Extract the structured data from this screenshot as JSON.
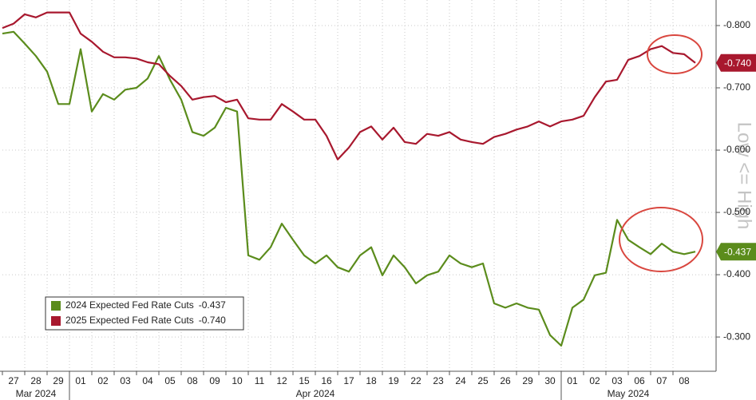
{
  "chart_data": {
    "type": "line",
    "annotation": "Low <= High",
    "xlim": [
      0,
      32
    ],
    "xticks": [
      {
        "value": 0,
        "label": "27"
      },
      {
        "value": 1,
        "label": "28"
      },
      {
        "value": 2,
        "label": "29"
      },
      {
        "value": 3,
        "label": "01"
      },
      {
        "value": 4,
        "label": "02"
      },
      {
        "value": 5,
        "label": "03"
      },
      {
        "value": 6,
        "label": "04"
      },
      {
        "value": 7,
        "label": "05"
      },
      {
        "value": 8,
        "label": "08"
      },
      {
        "value": 9,
        "label": "09"
      },
      {
        "value": 10,
        "label": "10"
      },
      {
        "value": 11,
        "label": "11"
      },
      {
        "value": 12,
        "label": "12"
      },
      {
        "value": 13,
        "label": "15"
      },
      {
        "value": 14,
        "label": "16"
      },
      {
        "value": 15,
        "label": "17"
      },
      {
        "value": 16,
        "label": "18"
      },
      {
        "value": 17,
        "label": "19"
      },
      {
        "value": 18,
        "label": "22"
      },
      {
        "value": 19,
        "label": "23"
      },
      {
        "value": 20,
        "label": "24"
      },
      {
        "value": 21,
        "label": "25"
      },
      {
        "value": 22,
        "label": "26"
      },
      {
        "value": 23,
        "label": "29"
      },
      {
        "value": 24,
        "label": "30"
      },
      {
        "value": 25,
        "label": "01"
      },
      {
        "value": 26,
        "label": "02"
      },
      {
        "value": 27,
        "label": "03"
      },
      {
        "value": 28,
        "label": "06"
      },
      {
        "value": 29,
        "label": "07"
      },
      {
        "value": 30,
        "label": "08"
      }
    ],
    "x_groups": [
      {
        "label": "Mar 2024",
        "start": 0,
        "end": 3
      },
      {
        "label": "Apr 2024",
        "start": 3,
        "end": 25
      },
      {
        "label": "May 2024",
        "start": 25,
        "end": 31
      }
    ],
    "ylim": [
      -0.841,
      -0.245
    ],
    "y_inverted": true,
    "yticks": [
      {
        "value": -0.8,
        "label": "-0.800"
      },
      {
        "value": -0.7,
        "label": "-0.700"
      },
      {
        "value": -0.6,
        "label": "-0.600"
      },
      {
        "value": -0.5,
        "label": "-0.500"
      },
      {
        "value": -0.4,
        "label": "-0.400"
      },
      {
        "value": -0.3,
        "label": "-0.300"
      }
    ],
    "grid": true,
    "legend": "bottom-left",
    "x": [
      0,
      0.5,
      1,
      1.5,
      2,
      2.5,
      3,
      3.5,
      4,
      4.5,
      5,
      5.5,
      6,
      6.5,
      7,
      7.5,
      8,
      8.5,
      9,
      9.5,
      10,
      10.5,
      11,
      11.5,
      12,
      12.5,
      13,
      13.5,
      14,
      14.5,
      15,
      15.5,
      16,
      16.5,
      17,
      17.5,
      18,
      18.5,
      19,
      19.5,
      20,
      20.5,
      21,
      21.5,
      22,
      22.5,
      23,
      23.5,
      24,
      24.5,
      25,
      25.5,
      26,
      26.5,
      27,
      27.5,
      28,
      28.5,
      29,
      29.5,
      30,
      30.5,
      31
    ],
    "series": [
      {
        "name": "2024 Expected Fed Rate Cuts",
        "color": "#5b8c1c",
        "last_value": {
          "value": -0.437,
          "label": "-0.437"
        },
        "values": [
          -0.787,
          -0.79,
          -0.771,
          -0.751,
          -0.726,
          -0.674,
          -0.674,
          -0.762,
          -0.662,
          -0.69,
          -0.681,
          -0.697,
          -0.7,
          -0.715,
          -0.751,
          -0.713,
          -0.681,
          -0.629,
          -0.623,
          -0.636,
          -0.668,
          -0.662,
          -0.431,
          -0.424,
          -0.444,
          -0.482,
          -0.456,
          -0.431,
          -0.418,
          -0.431,
          -0.412,
          -0.405,
          -0.431,
          -0.444,
          -0.399,
          -0.431,
          -0.412,
          -0.386,
          -0.399,
          -0.405,
          -0.431,
          -0.418,
          -0.412,
          -0.418,
          -0.354,
          -0.347,
          -0.354,
          -0.347,
          -0.344,
          -0.303,
          -0.286,
          -0.347,
          -0.36,
          -0.399,
          -0.403,
          -0.488,
          -0.456,
          -0.444,
          -0.433,
          -0.45,
          -0.437,
          -0.433,
          -0.437
        ]
      },
      {
        "name": "2025 Expected Fed Rate Cuts",
        "color": "#a8182e",
        "last_value": {
          "value": -0.74,
          "label": "-0.740"
        },
        "values": [
          -0.796,
          -0.803,
          -0.818,
          -0.813,
          -0.821,
          -0.821,
          -0.821,
          -0.787,
          -0.774,
          -0.758,
          -0.749,
          -0.749,
          -0.747,
          -0.741,
          -0.738,
          -0.719,
          -0.703,
          -0.681,
          -0.685,
          -0.687,
          -0.677,
          -0.681,
          -0.651,
          -0.649,
          -0.649,
          -0.674,
          -0.662,
          -0.649,
          -0.649,
          -0.623,
          -0.585,
          -0.604,
          -0.629,
          -0.638,
          -0.617,
          -0.636,
          -0.613,
          -0.61,
          -0.626,
          -0.623,
          -0.629,
          -0.617,
          -0.613,
          -0.61,
          -0.621,
          -0.626,
          -0.633,
          -0.638,
          -0.646,
          -0.638,
          -0.646,
          -0.649,
          -0.655,
          -0.685,
          -0.71,
          -0.713,
          -0.745,
          -0.751,
          -0.762,
          -0.767,
          -0.756,
          -0.754,
          -0.74
        ]
      }
    ]
  }
}
